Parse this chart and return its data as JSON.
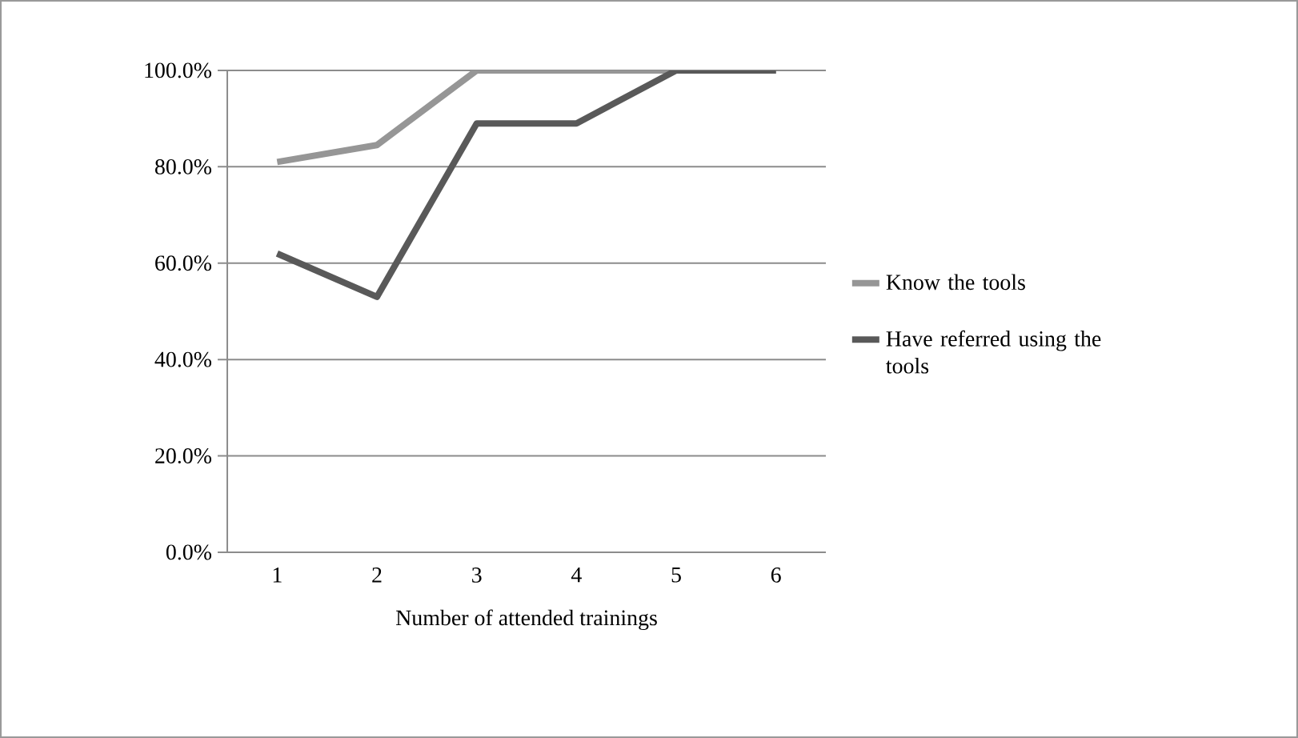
{
  "chart_data": {
    "type": "line",
    "xlabel": "Number of attended trainings",
    "categories": [
      "1",
      "2",
      "3",
      "4",
      "5",
      "6"
    ],
    "series": [
      {
        "name": "Know the tools",
        "color": "#969696",
        "values": [
          81,
          84.5,
          100,
          100,
          100,
          100
        ]
      },
      {
        "name": "Have referred using the tools",
        "color": "#595959",
        "values": [
          62,
          53,
          89,
          89,
          100,
          100
        ]
      }
    ],
    "ylim": [
      0,
      100
    ],
    "yticks": [
      {
        "value": 0,
        "label": "0.0%"
      },
      {
        "value": 20,
        "label": "20.0%"
      },
      {
        "value": 40,
        "label": "40.0%"
      },
      {
        "value": 60,
        "label": "60.0%"
      },
      {
        "value": 80,
        "label": "80.0%"
      },
      {
        "value": 100,
        "label": "100.0%"
      }
    ],
    "grid": "y",
    "legend": "right",
    "marker": "none",
    "line_style": "solid"
  }
}
